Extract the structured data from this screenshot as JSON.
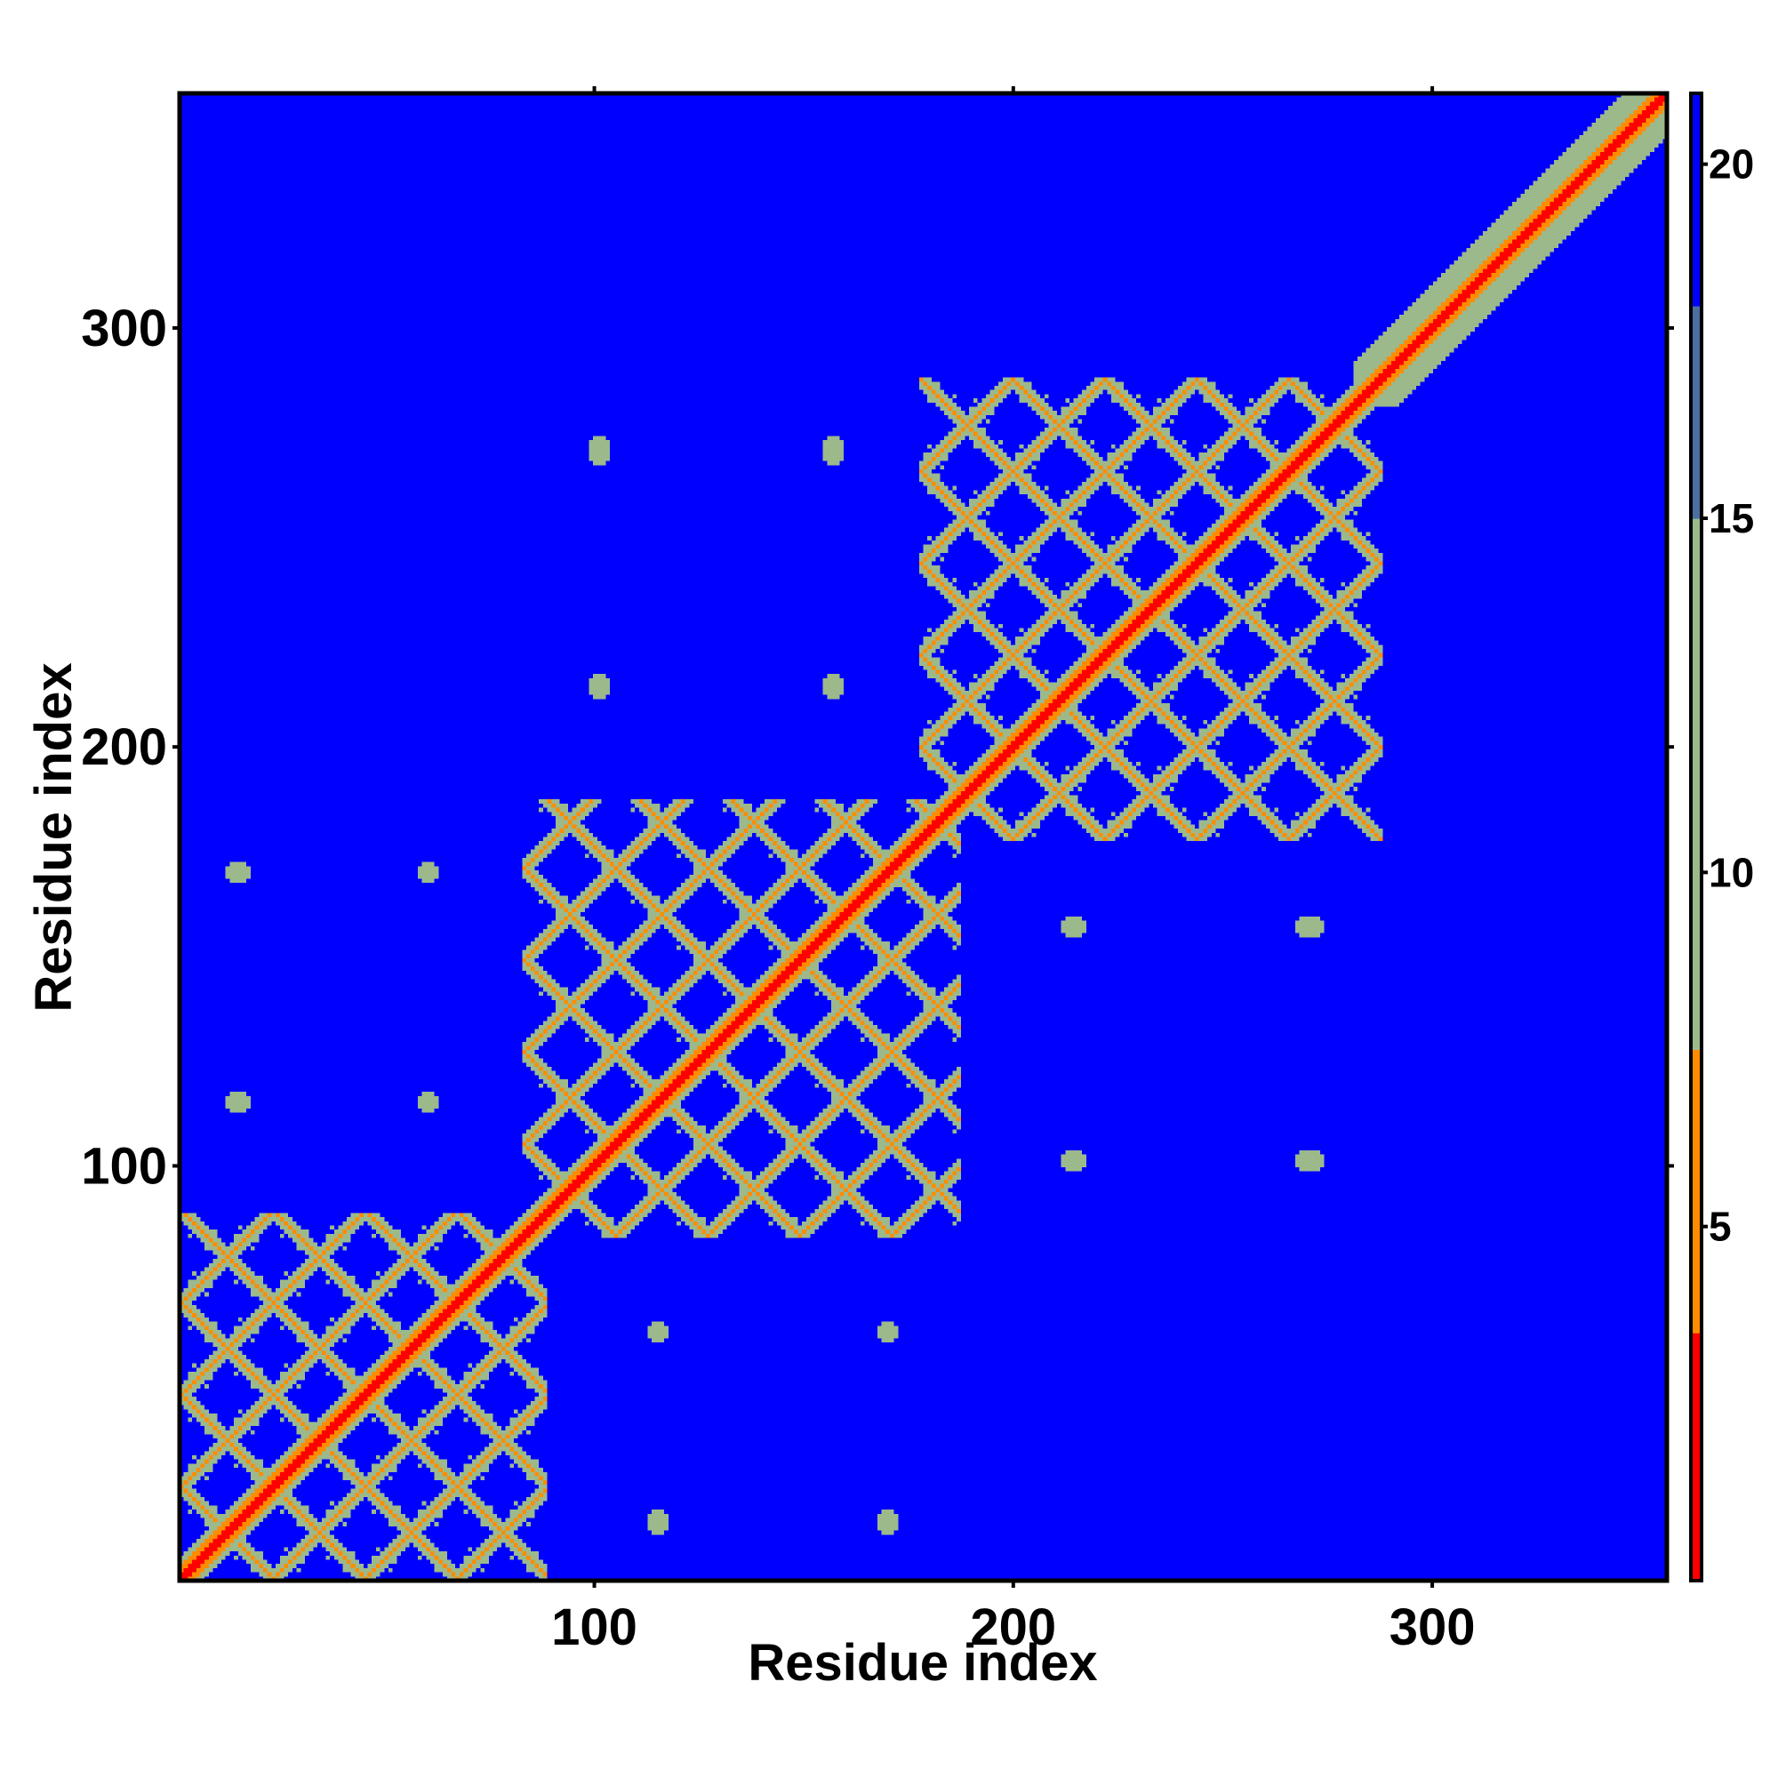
{
  "chart_data": {
    "type": "heatmap",
    "title": "",
    "xlabel": "Residue index",
    "ylabel": "Residue index",
    "xlim": [
      1,
      356
    ],
    "ylim": [
      1,
      356
    ],
    "xticks": [
      100,
      200,
      300
    ],
    "xtick_labels": [
      "100",
      "200",
      "300"
    ],
    "yticks": [
      100,
      200,
      300
    ],
    "ytick_labels": [
      "100",
      "200",
      "300"
    ],
    "colorbar": {
      "ticks": [
        5,
        10,
        15,
        20
      ],
      "tick_labels": [
        "5",
        "10",
        "15",
        "20"
      ],
      "range": [
        0,
        21
      ],
      "colors": {
        "low": "#ff0000",
        "mid": "#ff8c00",
        "mid_high": "#9cb98c",
        "high": "#4a6fa0",
        "max": "#0000ff"
      }
    },
    "background_value": 21,
    "background_color": "#0000ff",
    "diagonal": {
      "from": 1,
      "to": 356,
      "value": 2
    },
    "blocks": [
      {
        "range": [
          1,
          88
        ],
        "description": "domain 1 lattice"
      },
      {
        "range": [
          83,
          187
        ],
        "description": "domain 2 lattice"
      },
      {
        "range": [
          178,
          288
        ],
        "description": "domain 3 lattice"
      },
      {
        "range": [
          282,
          356
        ],
        "description": "C-terminal region, diagonal only"
      }
    ],
    "distant_contacts": [
      {
        "x": 14,
        "y": 170
      },
      {
        "x": 60,
        "y": 170
      },
      {
        "x": 14,
        "y": 115
      },
      {
        "x": 60,
        "y": 115
      },
      {
        "x": 101,
        "y": 272
      },
      {
        "x": 157,
        "y": 272
      },
      {
        "x": 101,
        "y": 214
      },
      {
        "x": 157,
        "y": 214
      },
      {
        "x": 115,
        "y": 60
      },
      {
        "x": 170,
        "y": 60
      },
      {
        "x": 115,
        "y": 15
      },
      {
        "x": 170,
        "y": 15
      },
      {
        "x": 215,
        "y": 157
      },
      {
        "x": 270,
        "y": 157
      },
      {
        "x": 215,
        "y": 101
      },
      {
        "x": 270,
        "y": 101
      }
    ]
  }
}
